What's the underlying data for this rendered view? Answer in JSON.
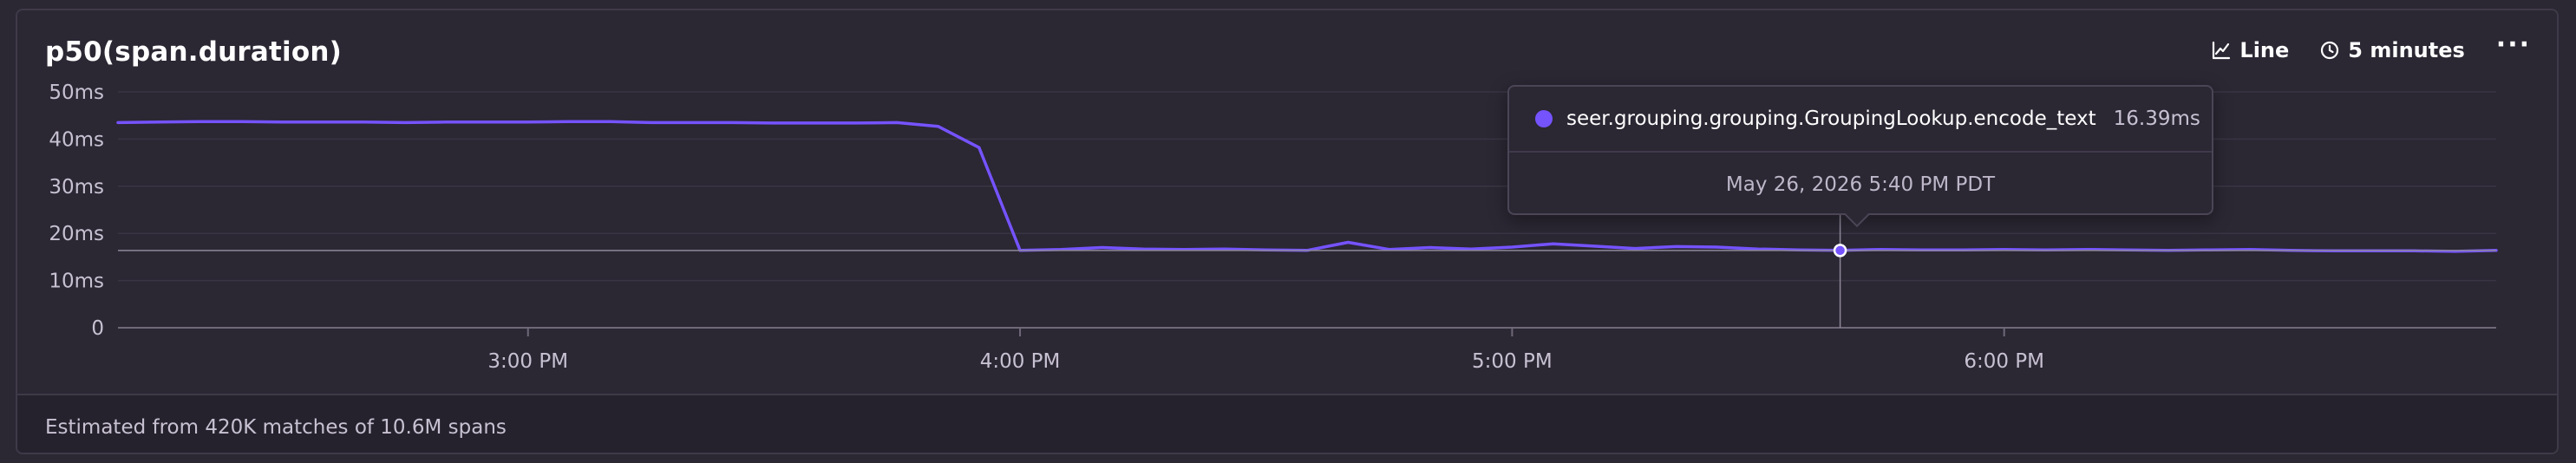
{
  "widget": {
    "title": "p50(span.duration)",
    "controls": {
      "display_type": "Line",
      "interval": "5 minutes"
    },
    "footer": "Estimated from 420K matches of 10.6M spans"
  },
  "tooltip": {
    "series_name": "seer.grouping.grouping.GroupingLookup.encode_text",
    "value": "16.39ms",
    "date": "May 26, 2026 5:40 PM PDT"
  },
  "colors": {
    "series": "#7553ff",
    "background": "#2b2733",
    "axis_text": "#c7c1d2"
  },
  "chart_data": {
    "type": "line",
    "title": "p50(span.duration)",
    "xlabel": "",
    "ylabel": "",
    "y_unit": "ms",
    "ylim": [
      0,
      50
    ],
    "y_ticks": [
      0,
      10,
      20,
      30,
      40,
      50
    ],
    "y_tick_labels": [
      "0",
      "10ms",
      "20ms",
      "30ms",
      "40ms",
      "50ms"
    ],
    "x_tick_labels": [
      "3:00 PM",
      "4:00 PM",
      "5:00 PM",
      "6:00 PM"
    ],
    "x_ticks_minutes_after_midnight": [
      900,
      960,
      1020,
      1080
    ],
    "xlim_minutes_after_midnight": [
      850,
      1140
    ],
    "grid": true,
    "legend": "none",
    "series": [
      {
        "name": "seer.grouping.grouping.GroupingLookup.encode_text",
        "x_start_minutes_after_midnight": 850,
        "x_step_minutes": 5,
        "values": [
          43.5,
          43.6,
          43.7,
          43.7,
          43.6,
          43.6,
          43.6,
          43.5,
          43.6,
          43.6,
          43.6,
          43.7,
          43.7,
          43.5,
          43.5,
          43.5,
          43.4,
          43.4,
          43.4,
          43.5,
          42.7,
          38.2,
          16.4,
          16.6,
          17.0,
          16.7,
          16.6,
          16.7,
          16.5,
          16.4,
          18.1,
          16.6,
          17.0,
          16.7,
          17.1,
          17.8,
          17.3,
          16.8,
          17.2,
          17.1,
          16.7,
          16.5,
          16.4,
          16.6,
          16.5,
          16.5,
          16.6,
          16.5,
          16.6,
          16.5,
          16.4,
          16.5,
          16.6,
          16.4,
          16.3,
          16.3,
          16.3,
          16.2,
          16.4
        ]
      }
    ],
    "highlighted_point": {
      "x_minutes_after_midnight": 1060,
      "y": 16.39
    }
  }
}
